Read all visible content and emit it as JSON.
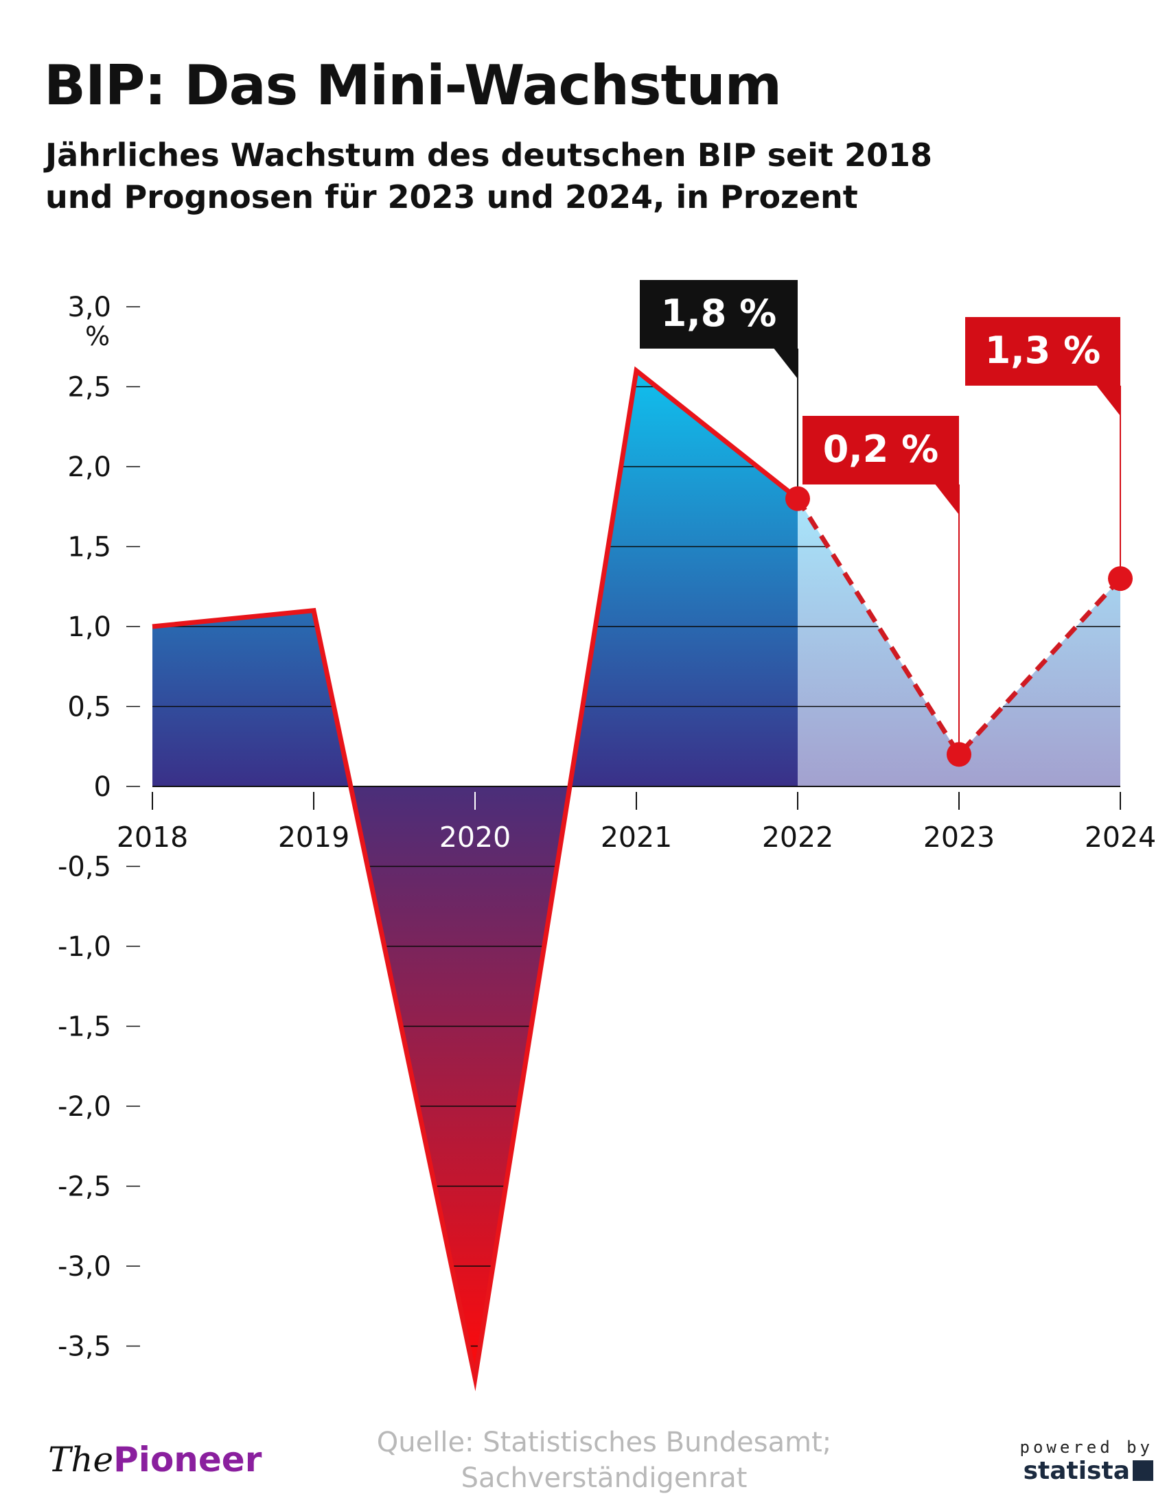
{
  "title": "BIP: Das Mini-Wachstum",
  "subtitle": {
    "line1": "Jährliches Wachstum des deutschen BIP seit 2018",
    "line2": "und Prognosen für 2023 und 2024, in Prozent"
  },
  "chart_data": {
    "type": "area",
    "x": [
      "2018",
      "2019",
      "2020",
      "2021",
      "2022",
      "2023",
      "2024"
    ],
    "series": [
      {
        "values": [
          1.0,
          1.1,
          -3.7,
          2.6,
          1.8,
          0.2,
          1.3
        ]
      }
    ],
    "forecast_from_index": 4,
    "ylim": [
      -3.7,
      3.0
    ],
    "yticks": [
      {
        "value": 3.0,
        "label": "3,0"
      },
      {
        "value": 2.5,
        "label": "2,5"
      },
      {
        "value": 2.0,
        "label": "2,0"
      },
      {
        "value": 1.5,
        "label": "1,5"
      },
      {
        "value": 1.0,
        "label": "1,0"
      },
      {
        "value": 0.5,
        "label": "0,5"
      },
      {
        "value": 0,
        "label": "0"
      },
      {
        "value": -0.5,
        "label": "-0,5"
      },
      {
        "value": -1.0,
        "label": "-1,0"
      },
      {
        "value": -1.5,
        "label": "-1,5"
      },
      {
        "value": -2.0,
        "label": "-2,0"
      },
      {
        "value": -2.5,
        "label": "-2,5"
      },
      {
        "value": -3.0,
        "label": "-3,0"
      },
      {
        "value": -3.5,
        "label": "-3,5"
      }
    ],
    "yunit": "%",
    "grid": true,
    "annotations": [
      {
        "x": "2022",
        "value": 1.8,
        "text": "1,8 %",
        "style": "actual"
      },
      {
        "x": "2023",
        "value": 0.2,
        "text": "0,2 %",
        "style": "forecast"
      },
      {
        "x": "2024",
        "value": 1.3,
        "text": "1,3 %",
        "style": "forecast"
      }
    ],
    "colors": {
      "line": "#e8141a",
      "positive_top": "#10c0ee",
      "positive_bottom": "#3a3088",
      "negative_top": "#4a2e7a",
      "negative_bottom": "#ff0a0a",
      "forecast_top": "#a8e6fb",
      "forecast_bottom": "#a3a1cf",
      "label_actual": "#111111",
      "label_forecast": "#d30d16"
    }
  },
  "source": {
    "line1": "Quelle: Statistisches Bundesamt;",
    "line2": "Sachverständigenrat"
  },
  "brand": {
    "the": "The",
    "pioneer": "Pioneer"
  },
  "powered": {
    "line1": "powered by",
    "line2": "statista"
  }
}
